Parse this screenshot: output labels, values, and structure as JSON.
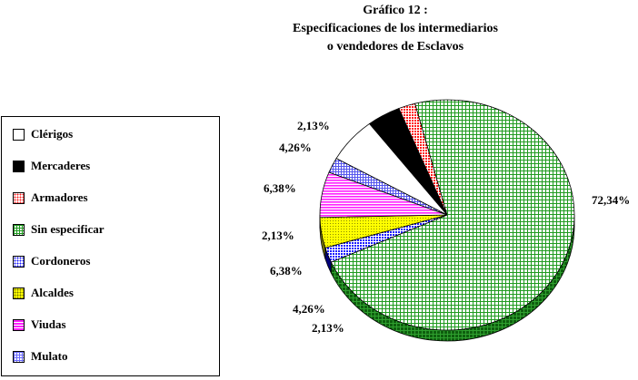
{
  "title_lines": [
    "Gráfico 12 :",
    "Especificaciones de los intermediarios",
    "o vendedores de Esclavos"
  ],
  "chart_data": {
    "type": "pie",
    "title": "Gráfico 12 : Especificaciones de los intermediarios o vendedores de Esclavos",
    "three_d": true,
    "legend_position": "left",
    "slices": [
      {
        "label": "Clérigos",
        "value": 6.38,
        "value_label": "6,38%",
        "color": "#ffffff",
        "pattern": "solid-white"
      },
      {
        "label": "Mercaderes",
        "value": 4.26,
        "value_label": "4,26%",
        "color": "#000000",
        "pattern": "solid-black"
      },
      {
        "label": "Armadores",
        "value": 2.13,
        "value_label": "2,13%",
        "color": "#ff2020",
        "pattern": "dots-red"
      },
      {
        "label": "Sin especificar",
        "value": 72.34,
        "value_label": "72,34%",
        "color": "#1f9a1f",
        "pattern": "grid-green"
      },
      {
        "label": "Cordoneros",
        "value": 2.13,
        "value_label": "2,13%",
        "color": "#1a1aff",
        "pattern": "dots-blue"
      },
      {
        "label": "Alcaldes",
        "value": 4.26,
        "value_label": "4,26%",
        "color": "#ffff00",
        "pattern": "dots-yellow"
      },
      {
        "label": "Viudas",
        "value": 6.38,
        "value_label": "6,38%",
        "color": "#ff20ff",
        "pattern": "hstripes-magenta"
      },
      {
        "label": "Mulato",
        "value": 2.13,
        "value_label": "2,13%",
        "color": "#6a6aff",
        "pattern": "grid-blue"
      }
    ]
  }
}
